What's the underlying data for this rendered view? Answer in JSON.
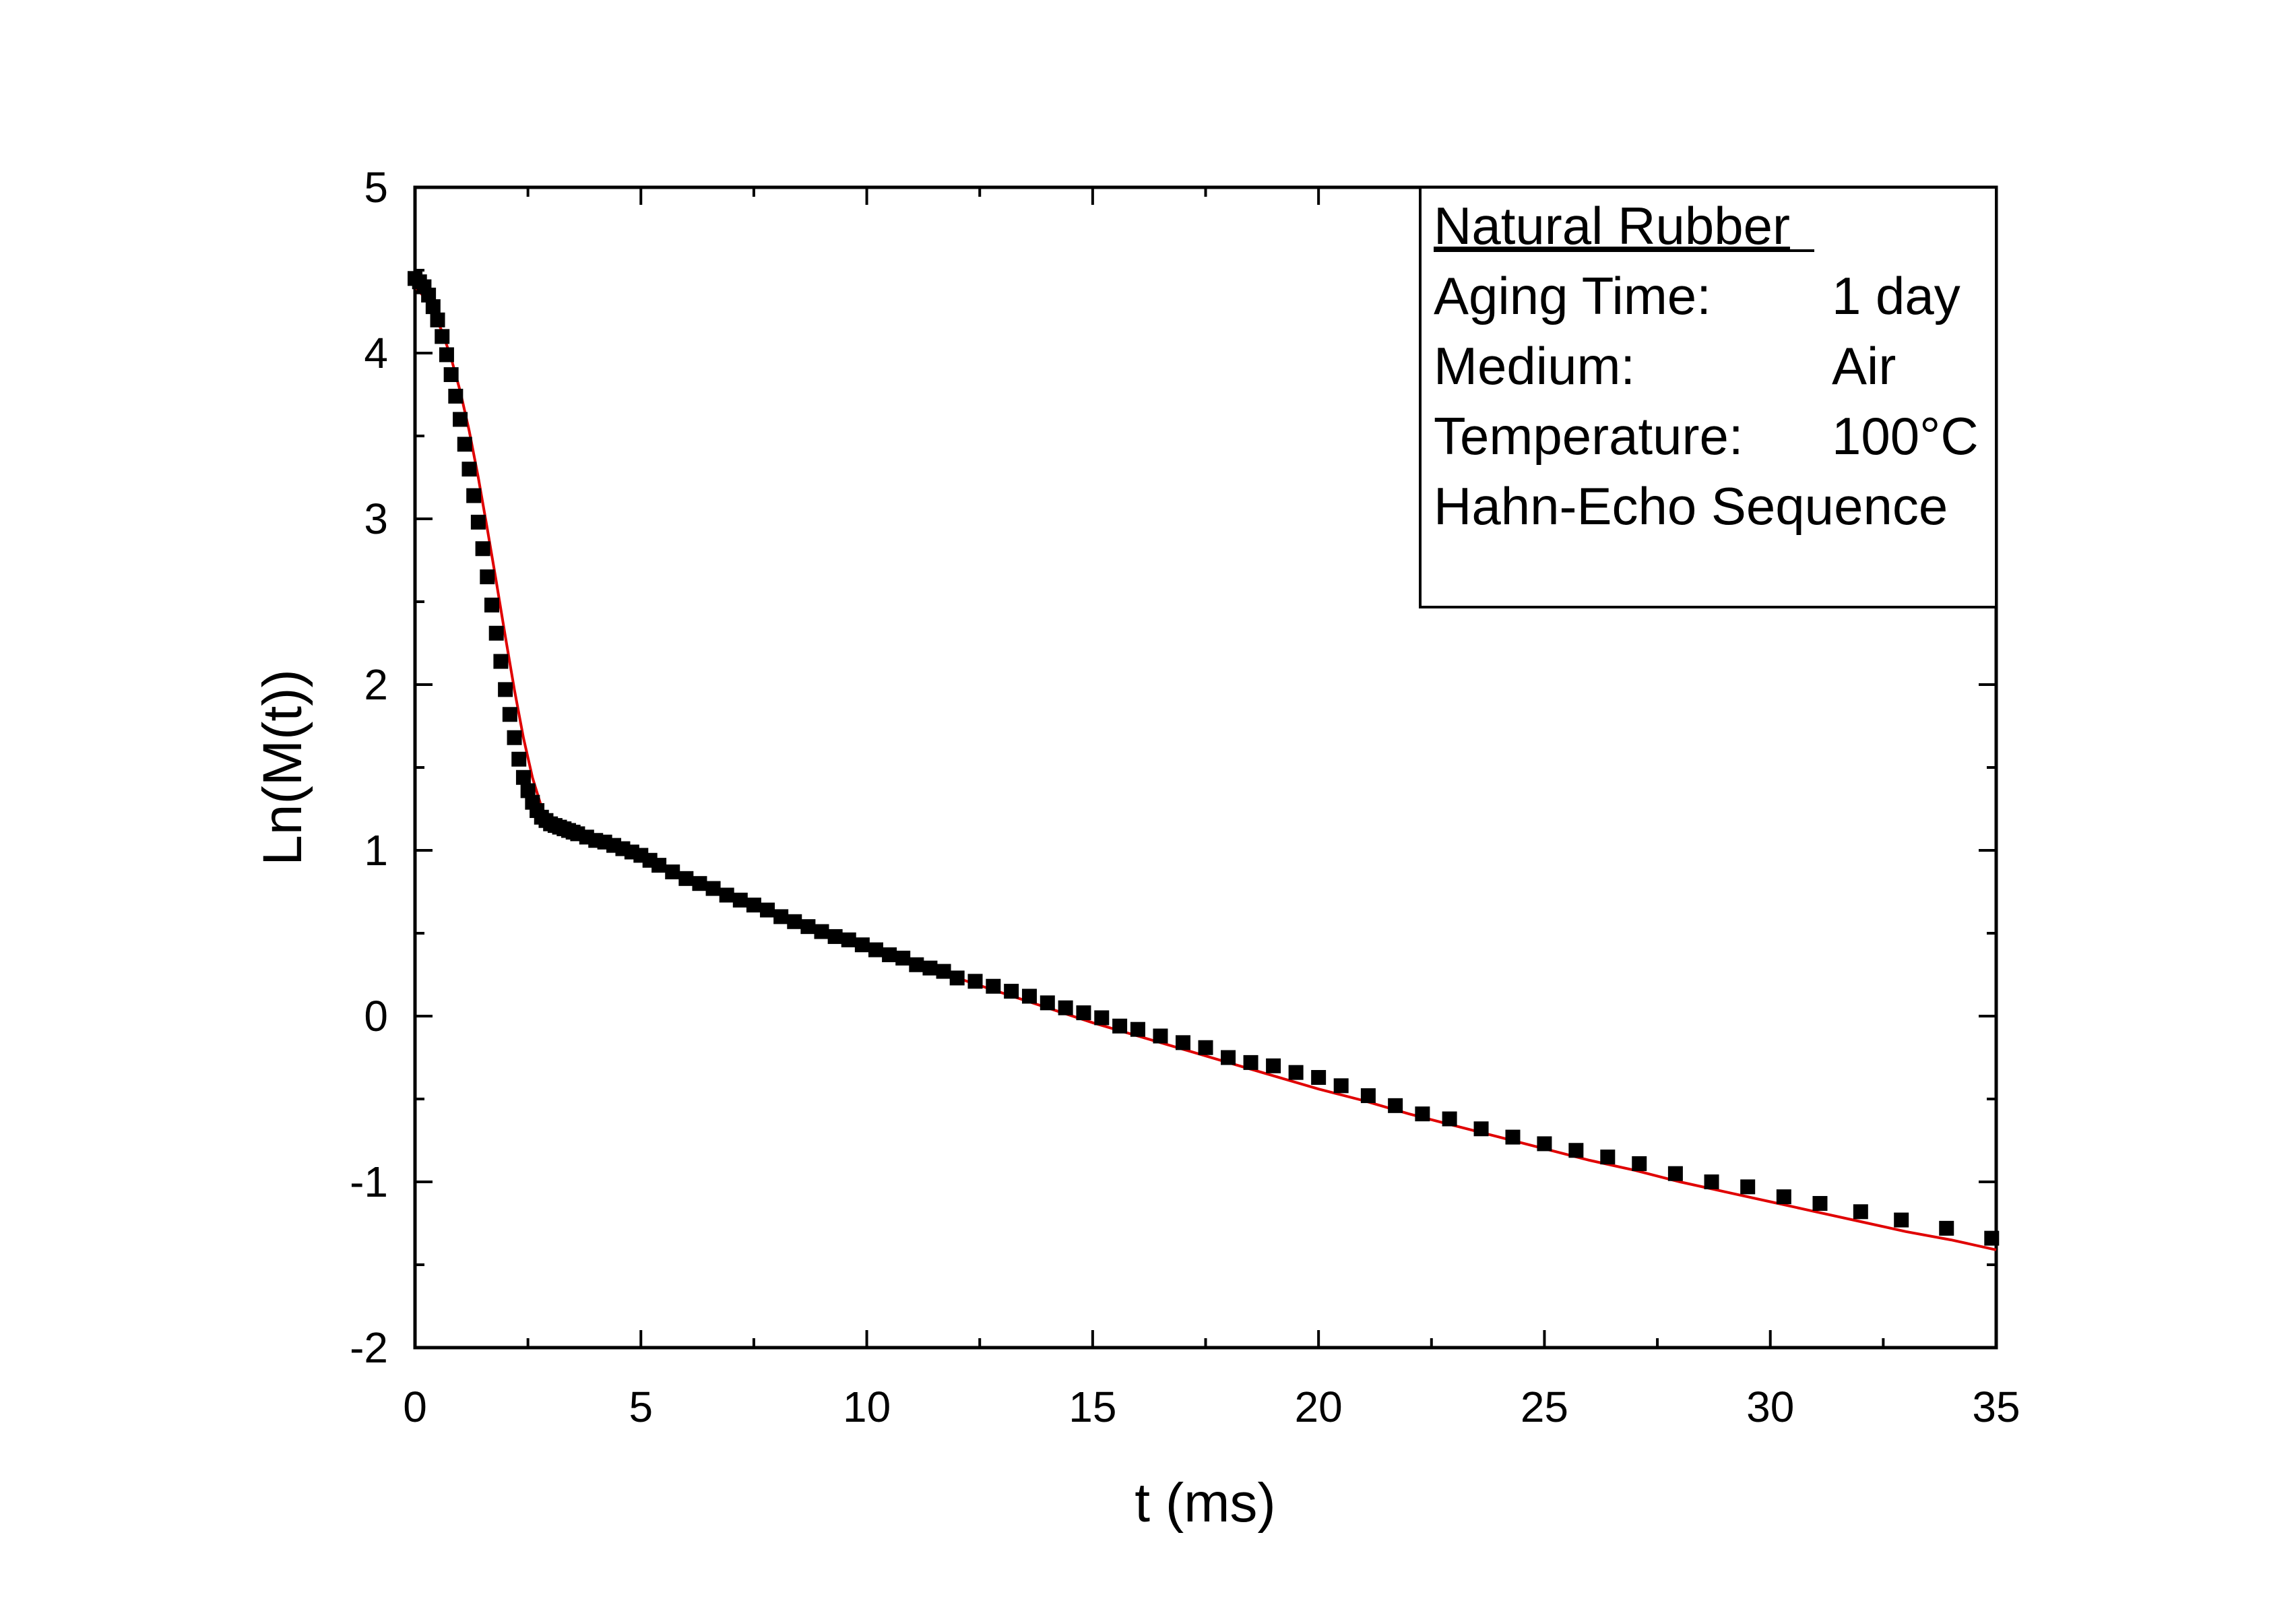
{
  "chart_data": {
    "type": "scatter",
    "title": "",
    "xlabel": "t (ms)",
    "ylabel": "Ln(M(t))",
    "xlim": [
      0,
      35
    ],
    "ylim": [
      -2,
      5
    ],
    "xticks": [
      0,
      5,
      10,
      15,
      20,
      25,
      30,
      35
    ],
    "yticks": [
      -2,
      -1,
      0,
      1,
      2,
      3,
      4,
      5
    ],
    "grid": false,
    "legend_placement": "top-right",
    "colors": {
      "markers": "#000000",
      "fit": "#e00000",
      "axes": "#000000"
    },
    "info_box": {
      "heading": "Natural Rubber",
      "rows": [
        {
          "label": "Aging Time:",
          "value": "1 day"
        },
        {
          "label": "Medium:",
          "value": "Air"
        },
        {
          "label": "Temperature:",
          "value": "100°C"
        }
      ],
      "footer": "Hahn-Echo Sequence"
    },
    "series": [
      {
        "kind": "markers",
        "x": [
          0.0,
          0.1,
          0.2,
          0.3,
          0.4,
          0.5,
          0.6,
          0.7,
          0.8,
          0.9,
          1.0,
          1.1,
          1.2,
          1.3,
          1.4,
          1.5,
          1.6,
          1.7,
          1.8,
          1.9,
          2.0,
          2.1,
          2.2,
          2.3,
          2.4,
          2.5,
          2.6,
          2.7,
          2.8,
          2.9,
          3.0,
          3.1,
          3.2,
          3.3,
          3.4,
          3.5,
          3.6,
          3.8,
          4.0,
          4.2,
          4.4,
          4.6,
          4.8,
          5.0,
          5.2,
          5.4,
          5.7,
          6.0,
          6.3,
          6.6,
          6.9,
          7.2,
          7.5,
          7.8,
          8.1,
          8.4,
          8.7,
          9.0,
          9.3,
          9.6,
          9.9,
          10.2,
          10.5,
          10.8,
          11.1,
          11.4,
          11.7,
          12.0,
          12.4,
          12.8,
          13.2,
          13.6,
          14.0,
          14.4,
          14.8,
          15.2,
          15.6,
          16.0,
          16.5,
          17.0,
          17.5,
          18.0,
          18.5,
          19.0,
          19.5,
          20.0,
          20.5,
          21.1,
          21.7,
          22.3,
          22.9,
          23.6,
          24.3,
          25.0,
          25.7,
          26.4,
          27.1,
          27.9,
          28.7,
          29.5,
          30.3,
          31.1,
          32.0,
          32.9,
          33.9,
          34.9
        ],
        "y": [
          4.45,
          4.43,
          4.4,
          4.35,
          4.28,
          4.2,
          4.1,
          3.99,
          3.87,
          3.74,
          3.6,
          3.45,
          3.3,
          3.14,
          2.98,
          2.82,
          2.65,
          2.48,
          2.31,
          2.14,
          1.97,
          1.82,
          1.68,
          1.55,
          1.44,
          1.36,
          1.29,
          1.24,
          1.2,
          1.18,
          1.16,
          1.15,
          1.14,
          1.13,
          1.12,
          1.11,
          1.1,
          1.08,
          1.06,
          1.05,
          1.03,
          1.01,
          0.99,
          0.97,
          0.94,
          0.91,
          0.87,
          0.83,
          0.8,
          0.77,
          0.73,
          0.7,
          0.67,
          0.64,
          0.6,
          0.57,
          0.54,
          0.51,
          0.48,
          0.46,
          0.43,
          0.4,
          0.37,
          0.35,
          0.31,
          0.29,
          0.27,
          0.23,
          0.21,
          0.18,
          0.15,
          0.12,
          0.08,
          0.05,
          0.02,
          -0.01,
          -0.06,
          -0.08,
          -0.12,
          -0.16,
          -0.19,
          -0.25,
          -0.28,
          -0.3,
          -0.34,
          -0.37,
          -0.42,
          -0.48,
          -0.54,
          -0.59,
          -0.62,
          -0.68,
          -0.73,
          -0.77,
          -0.81,
          -0.85,
          -0.89,
          -0.95,
          -1.0,
          -1.03,
          -1.09,
          -1.13,
          -1.18,
          -1.23,
          -1.28,
          -1.34
        ]
      },
      {
        "kind": "fit-line",
        "x": [
          0.0,
          0.2,
          0.4,
          0.6,
          0.8,
          1.0,
          1.2,
          1.4,
          1.6,
          1.8,
          2.0,
          2.2,
          2.4,
          2.6,
          2.8,
          3.0,
          3.2,
          3.4,
          3.6,
          3.8,
          4.0,
          5.0,
          6.0,
          7.0,
          8.0,
          9.0,
          10.0,
          11.0,
          12.0,
          13.0,
          14.0,
          15.0,
          16.0,
          17.0,
          18.0,
          19.0,
          20.0,
          21.0,
          22.0,
          23.0,
          24.0,
          25.0,
          26.0,
          27.0,
          28.0,
          29.0,
          30.0,
          31.0,
          32.0,
          33.0,
          34.0,
          35.0
        ],
        "y": [
          4.4,
          4.34,
          4.25,
          4.13,
          3.97,
          3.77,
          3.53,
          3.25,
          2.94,
          2.62,
          2.29,
          1.97,
          1.68,
          1.44,
          1.26,
          1.16,
          1.12,
          1.1,
          1.08,
          1.06,
          1.04,
          0.94,
          0.83,
          0.73,
          0.62,
          0.52,
          0.42,
          0.33,
          0.23,
          0.14,
          0.05,
          -0.04,
          -0.12,
          -0.2,
          -0.28,
          -0.36,
          -0.44,
          -0.51,
          -0.59,
          -0.66,
          -0.73,
          -0.8,
          -0.87,
          -0.93,
          -1.0,
          -1.06,
          -1.12,
          -1.18,
          -1.24,
          -1.3,
          -1.35,
          -1.41
        ]
      }
    ]
  }
}
